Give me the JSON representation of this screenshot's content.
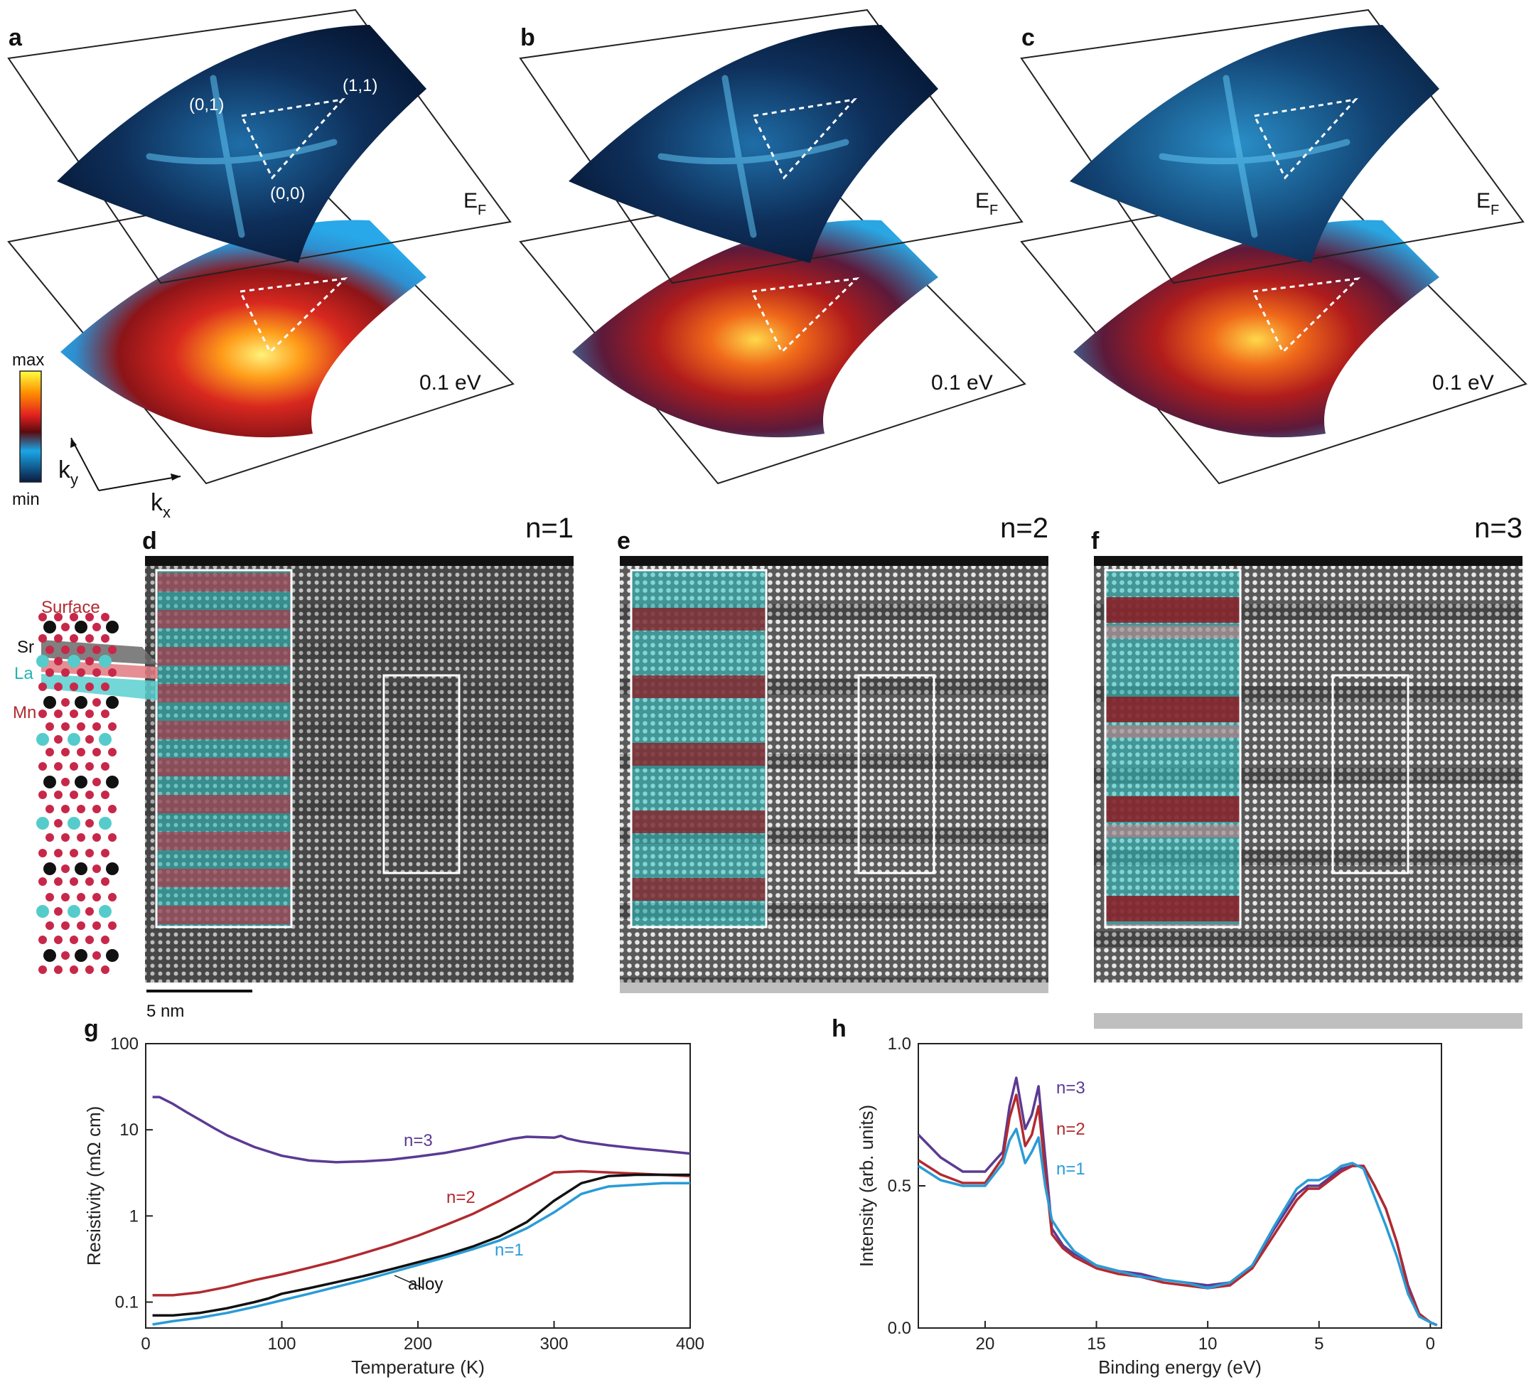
{
  "arpes_panels": [
    {
      "label": "a",
      "top_plane": "E",
      "top_plane_sub": "F",
      "bottom_plane": "0.1 eV",
      "points": [
        "(0,1)",
        "(1,1)",
        "(0,0)"
      ]
    },
    {
      "label": "b",
      "top_plane": "E",
      "top_plane_sub": "F",
      "bottom_plane": "0.1 eV"
    },
    {
      "label": "c",
      "top_plane": "E",
      "top_plane_sub": "F",
      "bottom_plane": "0.1 eV"
    }
  ],
  "colorbar": {
    "max_label": "max",
    "min_label": "min",
    "colors": [
      "#ffff40",
      "#ff8c00",
      "#e02020",
      "#5a0a10",
      "#1aa6e8",
      "#0a1a40"
    ]
  },
  "axes3d": {
    "ky": "k",
    "ky_sub": "y",
    "kx": "k",
    "kx_sub": "x"
  },
  "stem_panels": [
    {
      "label": "d",
      "title": "n=1"
    },
    {
      "label": "e",
      "title": "n=2"
    },
    {
      "label": "f",
      "title": "n=3"
    }
  ],
  "structure_legend": {
    "surface": "Surface",
    "sr": "Sr",
    "la": "La",
    "mn": "Mn"
  },
  "scalebar": {
    "label": "5 nm"
  },
  "chart_data": [
    {
      "label": "g",
      "type": "line",
      "xlabel": "Temperature (K)",
      "ylabel": "Resistivity (mΩ cm)",
      "xlim": [
        0,
        400
      ],
      "ylim": [
        0.05,
        100
      ],
      "yscale": "log",
      "xticks": [
        "0",
        "100",
        "200",
        "300",
        "400"
      ],
      "yticks": [
        "0.1",
        "1",
        "10",
        "100"
      ],
      "series": [
        {
          "name": "n=3",
          "color": "#5b3a93",
          "x": [
            5,
            10,
            20,
            30,
            40,
            50,
            60,
            80,
            100,
            120,
            140,
            160,
            180,
            200,
            220,
            240,
            260,
            270,
            280,
            290,
            300,
            305,
            310,
            320,
            340,
            360,
            380,
            400
          ],
          "y": [
            24,
            24,
            20,
            16,
            13,
            10.5,
            8.6,
            6.3,
            5.0,
            4.4,
            4.2,
            4.3,
            4.5,
            4.9,
            5.4,
            6.2,
            7.3,
            7.9,
            8.3,
            8.2,
            8.1,
            8.5,
            7.9,
            7.3,
            6.6,
            6.1,
            5.7,
            5.3
          ]
        },
        {
          "name": "n=2",
          "color": "#b12a2f",
          "x": [
            5,
            20,
            40,
            60,
            80,
            100,
            120,
            140,
            160,
            180,
            200,
            220,
            240,
            260,
            280,
            300,
            320,
            340,
            360,
            380,
            400
          ],
          "y": [
            0.12,
            0.12,
            0.13,
            0.15,
            0.18,
            0.21,
            0.25,
            0.3,
            0.37,
            0.46,
            0.59,
            0.78,
            1.05,
            1.5,
            2.2,
            3.2,
            3.3,
            3.2,
            3.1,
            3.0,
            2.9
          ]
        },
        {
          "name": "alloy",
          "color": "#111111",
          "x": [
            5,
            20,
            40,
            60,
            80,
            90,
            100,
            120,
            140,
            160,
            180,
            200,
            220,
            240,
            260,
            280,
            300,
            320,
            340,
            360,
            380,
            400
          ],
          "y": [
            0.07,
            0.07,
            0.075,
            0.085,
            0.1,
            0.11,
            0.125,
            0.145,
            0.17,
            0.2,
            0.24,
            0.29,
            0.35,
            0.44,
            0.58,
            0.85,
            1.5,
            2.4,
            2.9,
            3.0,
            3.0,
            3.0
          ]
        },
        {
          "name": "n=1",
          "color": "#2a9bd6",
          "x": [
            5,
            20,
            40,
            60,
            80,
            100,
            120,
            140,
            160,
            180,
            200,
            220,
            240,
            260,
            280,
            300,
            320,
            330,
            340,
            360,
            380,
            400
          ],
          "y": [
            0.055,
            0.06,
            0.066,
            0.075,
            0.088,
            0.105,
            0.125,
            0.15,
            0.18,
            0.22,
            0.27,
            0.33,
            0.41,
            0.52,
            0.72,
            1.1,
            1.8,
            2.0,
            2.2,
            2.3,
            2.4,
            2.4
          ]
        }
      ]
    },
    {
      "label": "h",
      "type": "line",
      "xlabel": "Binding energy (eV)",
      "ylabel": "Intensity (arb. units)",
      "xlim": [
        23,
        -0.5
      ],
      "ylim": [
        0,
        1.0
      ],
      "xticks": [
        "20",
        "15",
        "10",
        "5",
        "0"
      ],
      "yticks": [
        "0.0",
        "0.5",
        "1.0"
      ],
      "series": [
        {
          "name": "n=3",
          "color": "#5b3a93",
          "x": [
            23,
            22,
            21,
            20,
            19.2,
            18.9,
            18.6,
            18.2,
            17.9,
            17.6,
            17.3,
            17.0,
            16.5,
            16.0,
            15.0,
            14.0,
            13.0,
            12.0,
            11.0,
            10.0,
            9.0,
            8.0,
            7.0,
            6.0,
            5.5,
            5.0,
            4.5,
            4.0,
            3.5,
            3.0,
            2.5,
            2.0,
            1.5,
            1.0,
            0.5,
            0.0,
            -0.3
          ],
          "y": [
            0.68,
            0.6,
            0.55,
            0.55,
            0.62,
            0.78,
            0.88,
            0.7,
            0.75,
            0.85,
            0.6,
            0.35,
            0.29,
            0.26,
            0.22,
            0.2,
            0.19,
            0.17,
            0.16,
            0.15,
            0.16,
            0.22,
            0.35,
            0.47,
            0.5,
            0.5,
            0.53,
            0.56,
            0.57,
            0.57,
            0.5,
            0.42,
            0.3,
            0.15,
            0.05,
            0.02,
            0.01
          ]
        },
        {
          "name": "n=2",
          "color": "#b12a2f",
          "x": [
            23,
            22,
            21,
            20,
            19.2,
            18.9,
            18.6,
            18.2,
            17.9,
            17.6,
            17.3,
            17.0,
            16.5,
            16.0,
            15.0,
            14.0,
            13.0,
            12.0,
            11.0,
            10.0,
            9.0,
            8.0,
            7.0,
            6.0,
            5.5,
            5.0,
            4.5,
            4.0,
            3.5,
            3.0,
            2.5,
            2.0,
            1.5,
            1.0,
            0.5,
            0.0,
            -0.3
          ],
          "y": [
            0.59,
            0.54,
            0.51,
            0.51,
            0.6,
            0.74,
            0.82,
            0.64,
            0.68,
            0.78,
            0.55,
            0.33,
            0.28,
            0.25,
            0.21,
            0.19,
            0.18,
            0.16,
            0.15,
            0.14,
            0.15,
            0.21,
            0.33,
            0.45,
            0.49,
            0.49,
            0.52,
            0.55,
            0.57,
            0.57,
            0.5,
            0.42,
            0.3,
            0.14,
            0.05,
            0.02,
            0.01
          ]
        },
        {
          "name": "n=1",
          "color": "#2a9bd6",
          "x": [
            23,
            22,
            21,
            20,
            19.2,
            18.9,
            18.6,
            18.2,
            17.9,
            17.6,
            17.3,
            17.0,
            16.5,
            16.0,
            15.0,
            14.0,
            13.0,
            12.0,
            11.0,
            10.0,
            9.0,
            8.0,
            7.0,
            6.0,
            5.5,
            5.0,
            4.5,
            4.0,
            3.5,
            3.0,
            2.5,
            2.0,
            1.5,
            1.0,
            0.5,
            0.0,
            -0.3
          ],
          "y": [
            0.57,
            0.52,
            0.5,
            0.5,
            0.58,
            0.66,
            0.7,
            0.58,
            0.62,
            0.67,
            0.5,
            0.38,
            0.32,
            0.27,
            0.22,
            0.2,
            0.18,
            0.17,
            0.16,
            0.14,
            0.16,
            0.22,
            0.36,
            0.49,
            0.52,
            0.52,
            0.54,
            0.57,
            0.58,
            0.56,
            0.46,
            0.36,
            0.25,
            0.12,
            0.04,
            0.02,
            0.01
          ]
        }
      ]
    }
  ]
}
